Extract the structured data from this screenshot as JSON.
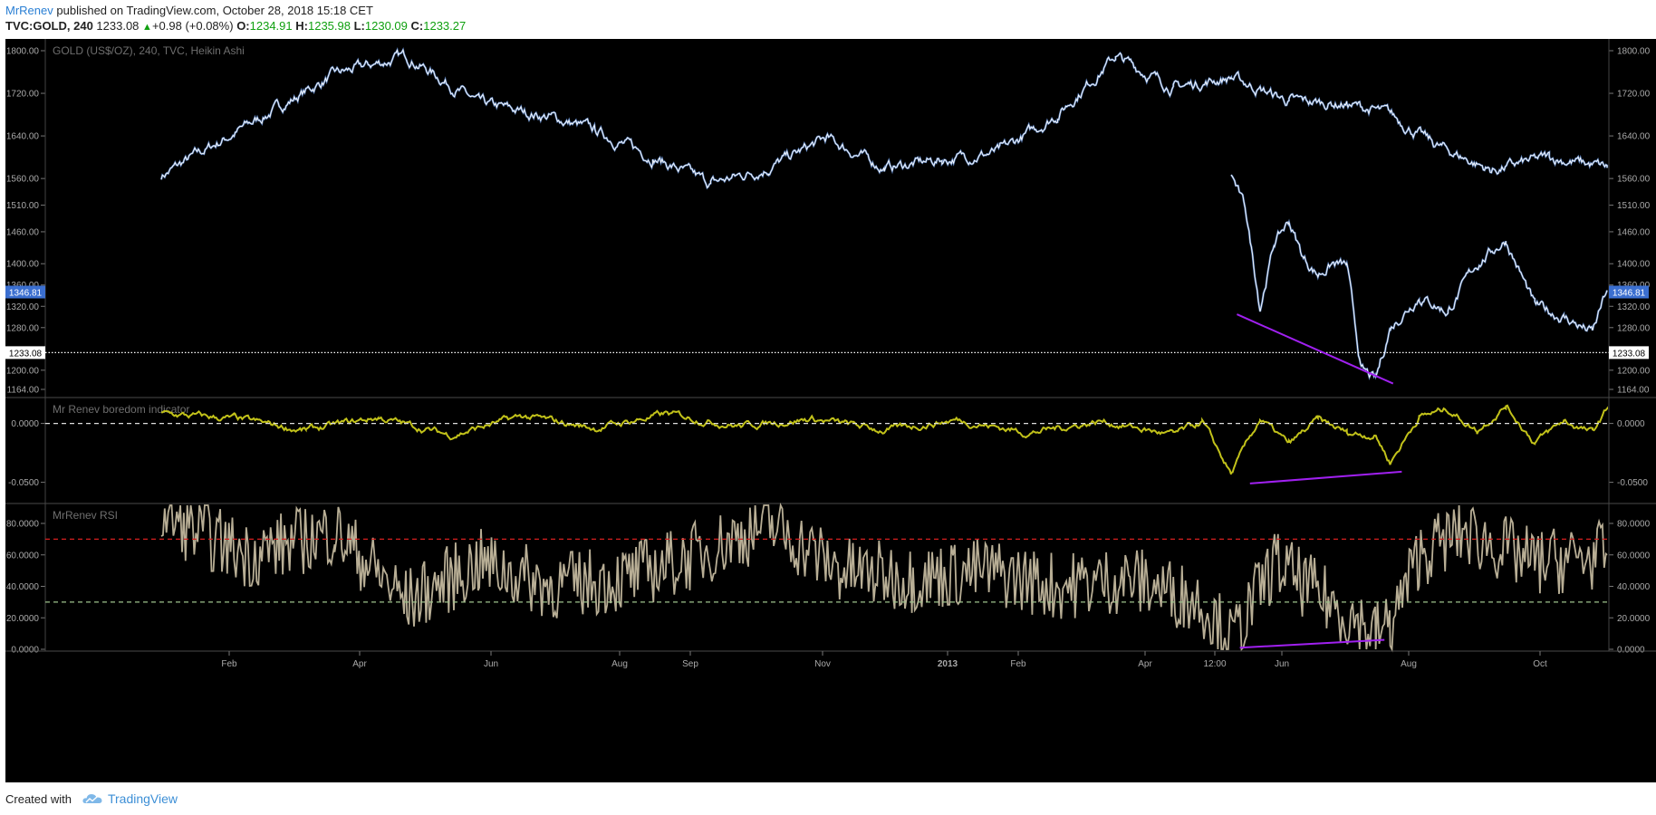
{
  "header": {
    "user": "MrRenev",
    "published": "published on TradingView.com, October 28, 2018 15:18 CET",
    "symbol": "TVC:GOLD, 240",
    "last": "1233.08",
    "change_arrow": "▲",
    "change": "+0.98 (+0.08%)",
    "o_label": "O:",
    "o_value": "1234.91",
    "h_label": "H:",
    "h_value": "1235.98",
    "l_label": "L:",
    "l_value": "1230.09",
    "c_label": "C:",
    "c_value": "1233.27"
  },
  "footer": {
    "created_with": "Created with",
    "brand": "TradingView"
  },
  "colors": {
    "background": "#000000",
    "price_line": "#ffffff",
    "price_up": "#6f9ee6",
    "boredom": "#c2c21a",
    "rsi": "#b8ae95",
    "divergence": "#a020f0",
    "rsi_overbought": "#d61f1f",
    "rsi_oversold": "#9ec28c",
    "price_tag": "#3b6fd0"
  },
  "chart_data": [
    {
      "type": "line",
      "title": "GOLD (US$/OZ), 240, TVC, Heikin Ashi",
      "x_tick_labels": [
        "Feb",
        "Apr",
        "Jun",
        "Aug",
        "Sep",
        "Nov",
        "2013",
        "Feb",
        "Apr",
        "12:00",
        "Jun",
        "Aug",
        "Oct"
      ],
      "y_tick_labels": [
        "1800.00",
        "1720.00",
        "1640.00",
        "1560.00",
        "1510.00",
        "1460.00",
        "1400.00",
        "1360.00",
        "1320.00",
        "1280.00",
        "1200.00",
        "1164.00"
      ],
      "ylim": [
        1164,
        1800
      ],
      "x": [
        0,
        6,
        12,
        17,
        22,
        27,
        30,
        34,
        38,
        42,
        46,
        50,
        54,
        58,
        62,
        66,
        70,
        74,
        78,
        82,
        85,
        88,
        92,
        96,
        100
      ],
      "values": [
        1565,
        1660,
        1755,
        1790,
        1700,
        1675,
        1650,
        1600,
        1550,
        1580,
        1635,
        1580,
        1595,
        1610,
        1680,
        1790,
        1730,
        1750,
        1705,
        1700,
        1680,
        1625,
        1575,
        1600,
        1580
      ],
      "segments": [
        {
          "x": [
            74,
            75,
            76,
            77,
            78,
            79,
            80,
            81,
            82,
            83,
            84,
            85
          ],
          "values": [
            1570,
            1500,
            1320,
            1440,
            1480,
            1410,
            1380,
            1400,
            1395,
            1200,
            1180,
            1280
          ]
        },
        {
          "x": [
            85,
            87,
            89,
            91,
            93,
            95,
            97,
            99,
            100
          ],
          "values": [
            1280,
            1340,
            1310,
            1400,
            1445,
            1320,
            1300,
            1270,
            1350
          ]
        }
      ],
      "current_price": "1346.81",
      "last_close": "1233.08",
      "divergence_line": {
        "x": [
          74.4,
          85.2
        ],
        "values": [
          1305,
          1175
        ]
      }
    },
    {
      "type": "line",
      "title": "Mr Renev boredom indicator",
      "y_tick_labels": [
        "0.0000",
        "-0.0500"
      ],
      "ylim": [
        -0.068,
        0.022
      ],
      "zero_line": 0,
      "x": [
        0,
        5,
        10,
        15,
        20,
        25,
        30,
        35,
        40,
        45,
        50,
        55,
        60,
        65,
        70,
        72,
        74,
        76,
        78,
        80,
        82,
        84,
        85,
        87,
        89,
        91,
        93,
        95,
        97,
        99,
        100
      ],
      "values": [
        0.008,
        0.004,
        -0.006,
        0.005,
        -0.01,
        0.006,
        -0.004,
        0.008,
        -0.002,
        0.004,
        -0.006,
        0.003,
        -0.008,
        0.002,
        -0.01,
        0.001,
        -0.043,
        0.004,
        -0.018,
        0.003,
        -0.008,
        -0.01,
        -0.033,
        0.006,
        0.012,
        -0.006,
        0.015,
        -0.016,
        0.002,
        -0.008,
        0.012
      ],
      "divergence_line": {
        "x": [
          75.3,
          85.8
        ],
        "values": [
          -0.051,
          -0.041
        ]
      }
    },
    {
      "type": "line",
      "title": "MrRenev RSI",
      "y_tick_labels": [
        "80.0000",
        "60.0000",
        "40.0000",
        "20.0000",
        "0.0000"
      ],
      "ylim": [
        0,
        80
      ],
      "overbought": 70,
      "oversold": 30,
      "x": [
        0,
        6,
        12,
        17,
        22,
        27,
        32,
        37,
        42,
        47,
        52,
        57,
        62,
        67,
        72,
        74,
        77,
        80,
        84,
        85,
        87,
        90,
        95,
        100
      ],
      "values": [
        85,
        60,
        75,
        30,
        55,
        40,
        45,
        60,
        80,
        50,
        45,
        50,
        40,
        45,
        30,
        5,
        55,
        35,
        10,
        15,
        60,
        75,
        55,
        60
      ],
      "divergence_line": {
        "x": [
          74.6,
          84.6
        ],
        "values": [
          1,
          6
        ]
      }
    }
  ]
}
